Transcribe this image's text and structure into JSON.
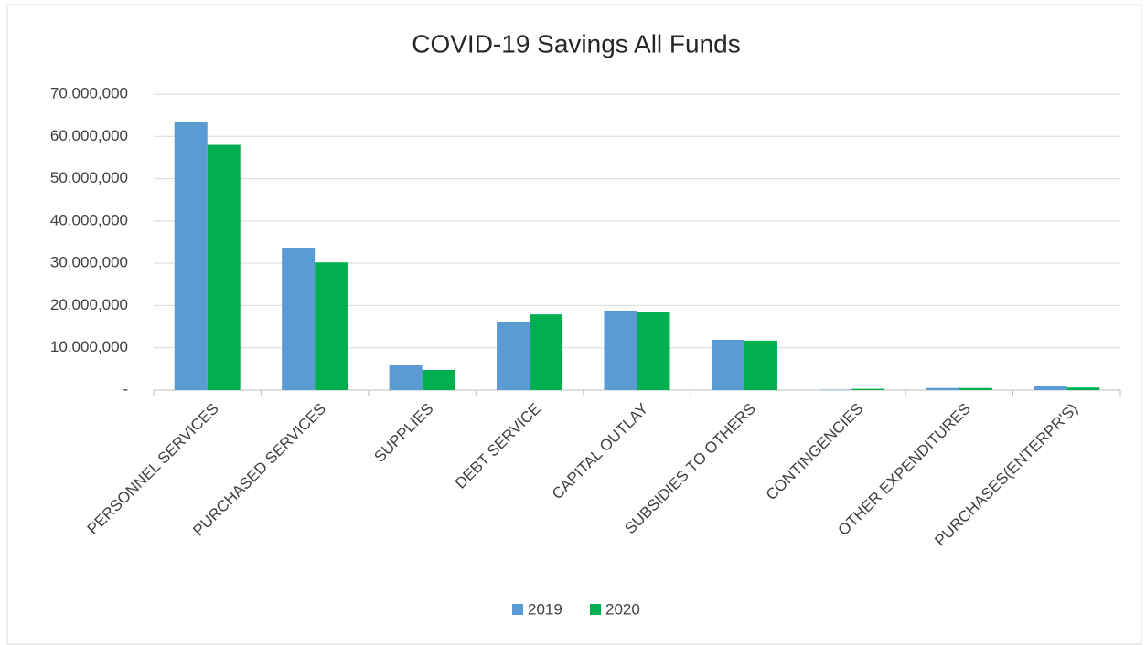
{
  "chart_data": {
    "type": "bar",
    "title": "COVID-19 Savings All Funds",
    "categories": [
      "PERSONNEL SERVICES",
      "PURCHASED SERVICES",
      "SUPPLIES",
      "DEBT SERVICE",
      "CAPITAL OUTLAY",
      "SUBSIDIES TO OTHERS",
      "CONTINGENCIES",
      "OTHER EXPENDITURES",
      "PURCHASES(ENTERPR'S)"
    ],
    "series": [
      {
        "name": "2019",
        "color": "#5b9bd5",
        "values": [
          63500000,
          33500000,
          6000000,
          16200000,
          18800000,
          11900000,
          100000,
          500000,
          900000
        ]
      },
      {
        "name": "2020",
        "color": "#00b050",
        "values": [
          58000000,
          30200000,
          4750000,
          17900000,
          18400000,
          11700000,
          300000,
          500000,
          600000
        ]
      }
    ],
    "ylim": [
      0,
      70000000
    ],
    "yticks": [
      {
        "value": 0,
        "label": "-"
      },
      {
        "value": 10000000,
        "label": "10,000,000"
      },
      {
        "value": 20000000,
        "label": "20,000,000"
      },
      {
        "value": 30000000,
        "label": "30,000,000"
      },
      {
        "value": 40000000,
        "label": "40,000,000"
      },
      {
        "value": 50000000,
        "label": "50,000,000"
      },
      {
        "value": 60000000,
        "label": "60,000,000"
      },
      {
        "value": 70000000,
        "label": "70,000,000"
      }
    ],
    "grid": true,
    "legend": "bottom"
  }
}
